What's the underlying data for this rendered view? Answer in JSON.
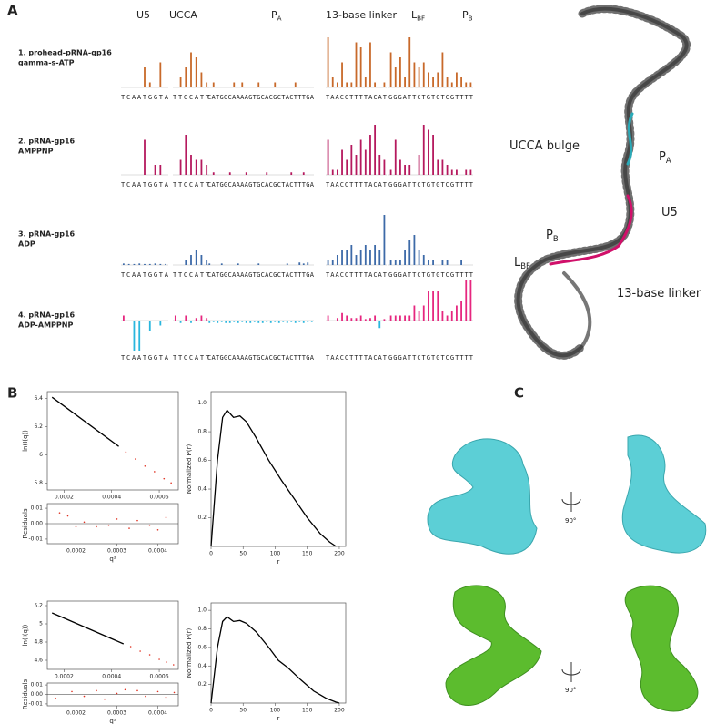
{
  "panel_labels": [
    "A",
    "B",
    "C"
  ],
  "panel_a": {
    "headers": [
      {
        "text": "U5"
      },
      {
        "text": "UCCA"
      },
      {
        "text": "P",
        "sub": "A"
      },
      {
        "text": "13-base linker"
      },
      {
        "text": "L",
        "sub": "BF"
      },
      {
        "text": "P",
        "sub": "B"
      }
    ],
    "sequences": [
      "TCAATGGTA",
      "TTCCATT",
      "CATGGCAAAAGTGCACGCTACTTTGA",
      "TAACCTTTTACAT",
      "GGGATTCTGTGTCGTTTT"
    ],
    "rows": [
      {
        "label_lines": [
          "1. prohead-pRNA-gp16",
          "gamma-s-ATP"
        ],
        "color": "#c8692a",
        "values": [
          [
            0,
            0,
            0,
            0,
            4,
            1,
            0,
            5,
            0
          ],
          [
            0,
            2,
            4,
            7,
            6,
            3,
            1
          ],
          [
            0,
            1,
            0,
            0,
            0,
            0,
            1,
            0,
            1,
            0,
            0,
            0,
            1,
            0,
            0,
            0,
            1,
            0,
            0,
            0,
            0,
            1,
            0,
            0,
            0,
            0
          ],
          [
            10,
            2,
            1,
            5,
            1,
            1,
            9,
            8,
            2,
            9,
            1,
            0,
            1
          ],
          [
            7,
            4,
            6,
            2,
            10,
            5,
            4,
            5,
            3,
            2,
            3,
            7,
            2,
            1,
            3,
            2,
            1,
            1
          ]
        ]
      },
      {
        "label_lines": [
          "2. pRNA-gp16",
          "AMPPNP"
        ],
        "color": "#b5195e",
        "values": [
          [
            0,
            0,
            0,
            0,
            7,
            0,
            2,
            2,
            0
          ],
          [
            0,
            3,
            8,
            4,
            3,
            3,
            2
          ],
          [
            0,
            0.5,
            0,
            0,
            0,
            0.5,
            0,
            0,
            0,
            0.5,
            0,
            0,
            0,
            0,
            0.5,
            0,
            0,
            0,
            0,
            0,
            0.5,
            0,
            0,
            0.5,
            0,
            0
          ],
          [
            7,
            1,
            1,
            5,
            3,
            6,
            4,
            7,
            5,
            8,
            10,
            4,
            3
          ],
          [
            1,
            7,
            3,
            2,
            2,
            0,
            4,
            10,
            9,
            8,
            3,
            3,
            2,
            1,
            1,
            0,
            1,
            1
          ]
        ]
      },
      {
        "label_lines": [
          "3. pRNA-gp16",
          "ADP"
        ],
        "color": "#3d6aa8",
        "values": [
          [
            0.3,
            0.2,
            0.2,
            0.3,
            0.2,
            0.2,
            0.3,
            0.2,
            0.2
          ],
          [
            0,
            0,
            1,
            2,
            3,
            2,
            1
          ],
          [
            0.3,
            0,
            0,
            0.3,
            0,
            0,
            0,
            0.3,
            0,
            0,
            0,
            0,
            0.3,
            0,
            0,
            0,
            0,
            0,
            0,
            0.3,
            0,
            0,
            0.5,
            0.3,
            0.5,
            0
          ],
          [
            1,
            1,
            2,
            3,
            3,
            4,
            2,
            3,
            4,
            3,
            4,
            3,
            10
          ],
          [
            1,
            1,
            1,
            3,
            5,
            6,
            3,
            2,
            1,
            1,
            0,
            1,
            1,
            0,
            0,
            1,
            0,
            0
          ]
        ]
      },
      {
        "label_lines": [
          "4. pRNA-gp16",
          "ADP-AMPPNP"
        ],
        "color": "#e6267f",
        "negative_color": "#2ab6dd",
        "values": [
          [
            1,
            0,
            -6,
            -6,
            0,
            -2,
            0,
            -1,
            0
          ],
          [
            1,
            -0.5,
            1,
            -0.5,
            0.5,
            1,
            0.5
          ],
          [
            -0.5,
            -0.3,
            -0.5,
            -0.3,
            -0.5,
            -0.5,
            -0.3,
            -0.5,
            -0.3,
            -0.5,
            -0.5,
            -0.3,
            -0.5,
            -0.5,
            -0.3,
            -0.5,
            -0.3,
            -0.5,
            -0.3,
            -0.5,
            -0.3,
            -0.5,
            -0.3,
            -0.5,
            -0.3,
            -0.3
          ],
          [
            1,
            0,
            0.5,
            1.5,
            1,
            0.5,
            0.5,
            1,
            0.3,
            0.5,
            1,
            -1.5,
            0.3
          ],
          [
            1,
            1,
            1,
            1,
            1,
            3,
            2,
            3,
            6,
            6,
            6,
            2,
            1,
            2,
            3,
            4,
            8,
            8
          ]
        ]
      }
    ]
  },
  "structure_labels": [
    {
      "text": "UCCA bulge"
    },
    {
      "text": "P",
      "sub": "A"
    },
    {
      "text": "U5"
    },
    {
      "text": "P",
      "sub": "B"
    },
    {
      "text": "L",
      "sub": "BF"
    },
    {
      "text": "13-base linker"
    }
  ],
  "chart_data": [
    {
      "type": "line",
      "ylabel": "ln(I(q))",
      "xlim": [
        0.00013,
        0.00068
      ],
      "ylim": [
        5.75,
        6.45
      ],
      "xticks": [
        0.0002,
        0.0004,
        0.0006
      ],
      "yticks": [
        5.8,
        6.0,
        6.2,
        6.4
      ],
      "series": [
        {
          "line_style": "solid",
          "color": "#000000",
          "x": [
            0.00015,
            0.00043
          ],
          "values": [
            6.41,
            6.06
          ]
        },
        {
          "line_style": "dots",
          "color": "#e03020",
          "x": [
            0.00046,
            0.0005,
            0.00054,
            0.00058,
            0.00062,
            0.00065
          ],
          "values": [
            6.02,
            5.97,
            5.92,
            5.88,
            5.83,
            5.8
          ]
        }
      ]
    },
    {
      "type": "scatter",
      "ylabel": "Residuals",
      "xlabel": "q²",
      "xlim": [
        0.00013,
        0.00045
      ],
      "ylim": [
        -0.013,
        0.013
      ],
      "xticks": [
        0.0002,
        0.0003,
        0.0004
      ],
      "yticks": [
        -0.01,
        {
          "value": 0,
          "label": "0.00"
        },
        0.01
      ],
      "hline": 0,
      "series": [
        {
          "color": "#e03020",
          "x": [
            0.00016,
            0.00018,
            0.0002,
            0.00022,
            0.00025,
            0.00028,
            0.0003,
            0.00033,
            0.00035,
            0.00038,
            0.0004,
            0.00042
          ],
          "values": [
            0.007,
            0.005,
            -0.002,
            0.001,
            -0.002,
            -0.001,
            0.003,
            -0.003,
            0.002,
            -0.001,
            -0.004,
            0.004
          ]
        }
      ]
    },
    {
      "type": "line",
      "ylabel": "Normalized P(r)",
      "xlabel": "r",
      "xlim": [
        0,
        210
      ],
      "ylim": [
        0,
        1.08
      ],
      "xticks": [
        0,
        50,
        100,
        150,
        200
      ],
      "yticks": [
        0.2,
        0.4,
        0.6,
        0.8,
        {
          "value": 1.0,
          "label": "1.0"
        }
      ],
      "series": [
        {
          "line_style": "solid",
          "color": "#000000",
          "x": [
            0,
            10,
            18,
            25,
            35,
            45,
            55,
            70,
            90,
            110,
            130,
            150,
            170,
            185,
            195
          ],
          "values": [
            0,
            0.6,
            0.9,
            0.95,
            0.9,
            0.91,
            0.87,
            0.76,
            0.6,
            0.46,
            0.33,
            0.2,
            0.09,
            0.03,
            0
          ]
        }
      ]
    },
    {
      "type": "line",
      "ylabel": "ln(I(q))",
      "xlim": [
        0.00013,
        0.00068
      ],
      "ylim": [
        4.5,
        5.25
      ],
      "xticks": [
        0.0002,
        0.0004,
        0.0006
      ],
      "yticks": [
        4.6,
        4.8,
        5.0,
        5.2
      ],
      "series": [
        {
          "line_style": "solid",
          "color": "#000000",
          "x": [
            0.00015,
            0.00045
          ],
          "values": [
            5.12,
            4.78
          ]
        },
        {
          "line_style": "dots",
          "color": "#e03020",
          "x": [
            0.00048,
            0.00052,
            0.00056,
            0.0006,
            0.00063,
            0.00066
          ],
          "values": [
            4.75,
            4.7,
            4.66,
            4.61,
            4.58,
            4.55
          ]
        }
      ]
    },
    {
      "type": "scatter",
      "ylabel": "Residuals",
      "xlabel": "q²",
      "xlim": [
        0.00013,
        0.00045
      ],
      "ylim": [
        -0.012,
        0.012
      ],
      "xticks": [
        0.0002,
        0.0003,
        0.0004
      ],
      "yticks": [
        -0.01,
        {
          "value": 0,
          "label": "0.00"
        },
        0.01
      ],
      "hline": 0,
      "series": [
        {
          "color": "#e03020",
          "x": [
            0.00015,
            0.00019,
            0.00022,
            0.00025,
            0.00027,
            0.0003,
            0.00032,
            0.00035,
            0.00037,
            0.0004,
            0.00042,
            0.00044
          ],
          "values": [
            -0.004,
            0.003,
            -0.002,
            0.004,
            -0.005,
            0.001,
            0.005,
            0.004,
            -0.002,
            0.003,
            -0.003,
            0.002
          ]
        }
      ]
    },
    {
      "type": "line",
      "ylabel": "Normalized P(r)",
      "xlabel": "r",
      "xlim": [
        0,
        210
      ],
      "ylim": [
        0,
        1.08
      ],
      "xticks": [
        0,
        50,
        100,
        150,
        200
      ],
      "yticks": [
        0.2,
        0.4,
        0.6,
        0.8,
        {
          "value": 1.0,
          "label": "1.0"
        }
      ],
      "series": [
        {
          "line_style": "solid",
          "color": "#000000",
          "x": [
            0,
            10,
            18,
            25,
            35,
            45,
            55,
            70,
            90,
            105,
            120,
            140,
            160,
            180,
            195,
            200
          ],
          "values": [
            0,
            0.6,
            0.88,
            0.93,
            0.88,
            0.89,
            0.86,
            0.77,
            0.6,
            0.46,
            0.38,
            0.25,
            0.13,
            0.05,
            0.01,
            0
          ]
        }
      ]
    }
  ],
  "panel_c": {
    "rotation_labels": [
      "90°",
      "90°"
    ]
  }
}
